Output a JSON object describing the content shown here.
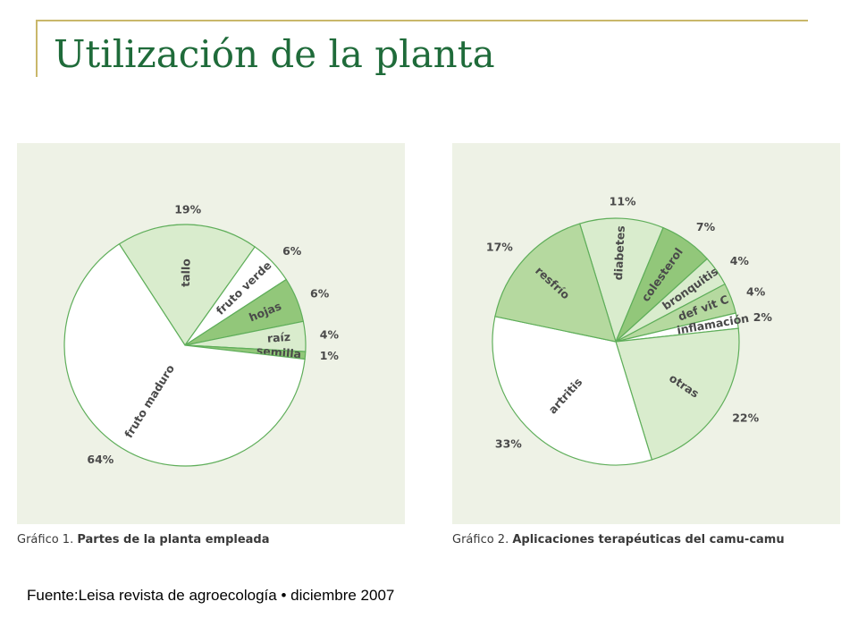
{
  "slide": {
    "title": "Utilización de la planta",
    "source": "Fuente:Leisa revista de agroecología • diciembre 2007"
  },
  "colors": {
    "title": "#1f6b3a",
    "panel_bg": "#eef2e6",
    "slice_stroke": "#5fae5a",
    "fill_white": "#ffffff",
    "fill_light": "#d9eccd",
    "fill_medium": "#b5d99f",
    "fill_dark": "#92c77a",
    "accent_rule": "#c9b76a"
  },
  "chart_data": [
    {
      "type": "pie",
      "caption_prefix": "Gráfico 1.",
      "caption_title": "Partes de la planta empleada",
      "slices": [
        {
          "label": "tallo",
          "value": 19,
          "value_label": "19%",
          "fill": "light"
        },
        {
          "label": "fruto verde",
          "value": 6,
          "value_label": "6%",
          "fill": "white"
        },
        {
          "label": "hojas",
          "value": 6,
          "value_label": "6%",
          "fill": "dark"
        },
        {
          "label": "raíz",
          "value": 4,
          "value_label": "4%",
          "fill": "light"
        },
        {
          "label": "semilla",
          "value": 1,
          "value_label": "1%",
          "fill": "dark"
        },
        {
          "label": "fruto maduro",
          "value": 64,
          "value_label": "64%",
          "fill": "white"
        }
      ]
    },
    {
      "type": "pie",
      "caption_prefix": "Gráfico 2.",
      "caption_title": "Aplicaciones terapéuticas del camu-camu",
      "slices": [
        {
          "label": "diabetes",
          "value": 11,
          "value_label": "11%",
          "fill": "light"
        },
        {
          "label": "colesterol",
          "value": 7,
          "value_label": "7%",
          "fill": "dark"
        },
        {
          "label": "bronquitis",
          "value": 4,
          "value_label": "4%",
          "fill": "light"
        },
        {
          "label": "def vit C",
          "value": 4,
          "value_label": "4%",
          "fill": "medium"
        },
        {
          "label": "inflamación",
          "value": 2,
          "value_label": "2%",
          "fill": "white"
        },
        {
          "label": "otras",
          "value": 22,
          "value_label": "22%",
          "fill": "light"
        },
        {
          "label": "artritis",
          "value": 33,
          "value_label": "33%",
          "fill": "white"
        },
        {
          "label": "resfrío",
          "value": 17,
          "value_label": "17%",
          "fill": "medium"
        }
      ]
    }
  ]
}
